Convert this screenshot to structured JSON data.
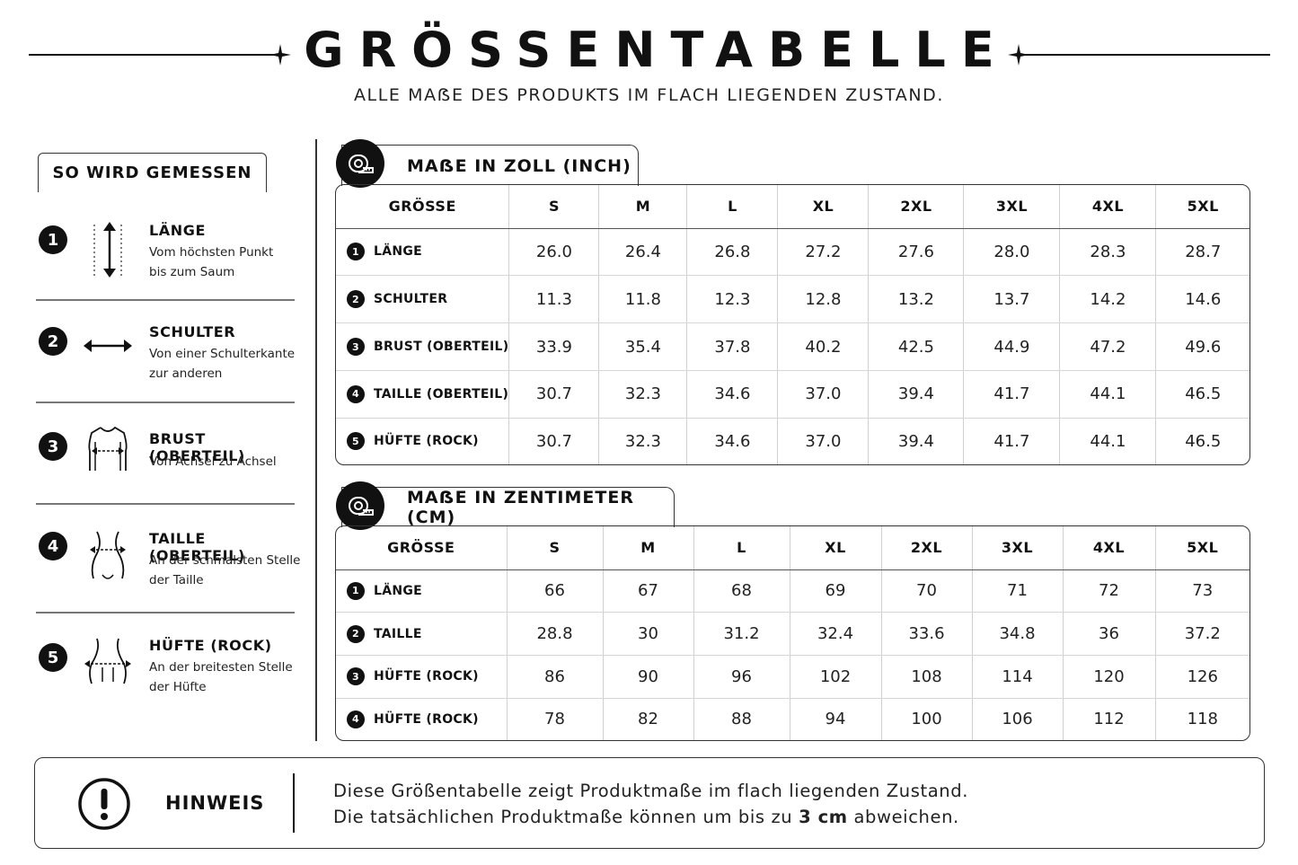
{
  "header": {
    "title": "GRÖSSENTABELLE",
    "subtitle": "ALLE MAẞE DES PRODUKTS IM FLACH LIEGENDEN ZUSTAND."
  },
  "guide": {
    "heading": "SO WIRD GEMESSEN",
    "steps": [
      {
        "num": "1",
        "title": "LÄNGE",
        "desc_1": "Vom höchsten Punkt",
        "desc_2": "bis zum Saum",
        "icon": "length-arrow-icon"
      },
      {
        "num": "2",
        "title": "SCHULTER",
        "desc_1": "Von einer Schulterkante",
        "desc_2": "zur anderen",
        "icon": "horizontal-arrow-icon"
      },
      {
        "num": "3",
        "title": "BRUST (OBERTEIL)",
        "desc_1": "Von Achsel zu Achsel",
        "desc_2": "",
        "icon": "bust-icon"
      },
      {
        "num": "4",
        "title": "TAILLE (OBERTEIL)",
        "desc_1": "An der schmalsten Stelle",
        "desc_2": "der Taille",
        "icon": "waist-icon"
      },
      {
        "num": "5",
        "title": "HÜFTE (ROCK)",
        "desc_1": "An der breitesten Stelle",
        "desc_2": "der Hüfte",
        "icon": "hip-icon"
      }
    ]
  },
  "inch_table": {
    "title": "MAẞE IN ZOLL (INCH)",
    "size_header": "GRÖSSE",
    "sizes": [
      "S",
      "M",
      "L",
      "XL",
      "2XL",
      "3XL",
      "4XL",
      "5XL"
    ],
    "rows": [
      {
        "num": "1",
        "label": "LÄNGE",
        "values": [
          "26.0",
          "26.4",
          "26.8",
          "27.2",
          "27.6",
          "28.0",
          "28.3",
          "28.7"
        ]
      },
      {
        "num": "2",
        "label": "SCHULTER",
        "values": [
          "11.3",
          "11.8",
          "12.3",
          "12.8",
          "13.2",
          "13.7",
          "14.2",
          "14.6"
        ]
      },
      {
        "num": "3",
        "label": "BRUST (OBERTEIL)",
        "values": [
          "33.9",
          "35.4",
          "37.8",
          "40.2",
          "42.5",
          "44.9",
          "47.2",
          "49.6"
        ]
      },
      {
        "num": "4",
        "label": "TAILLE (OBERTEIL)",
        "values": [
          "30.7",
          "32.3",
          "34.6",
          "37.0",
          "39.4",
          "41.7",
          "44.1",
          "46.5"
        ]
      },
      {
        "num": "5",
        "label": "HÜFTE (ROCK)",
        "values": [
          "30.7",
          "32.3",
          "34.6",
          "37.0",
          "39.4",
          "41.7",
          "44.1",
          "46.5"
        ]
      }
    ]
  },
  "cm_table": {
    "title": "MAẞE IN ZENTIMETER (CM)",
    "size_header": "GRÖSSE",
    "sizes": [
      "S",
      "M",
      "L",
      "XL",
      "2XL",
      "3XL",
      "4XL",
      "5XL"
    ],
    "rows": [
      {
        "num": "1",
        "label": "LÄNGE",
        "values": [
          "66",
          "67",
          "68",
          "69",
          "70",
          "71",
          "72",
          "73"
        ]
      },
      {
        "num": "2",
        "label": "TAILLE",
        "values": [
          "28.8",
          "30",
          "31.2",
          "32.4",
          "33.6",
          "34.8",
          "36",
          "37.2"
        ]
      },
      {
        "num": "3",
        "label": "HÜFTE (ROCK)",
        "values": [
          "86",
          "90",
          "96",
          "102",
          "108",
          "114",
          "120",
          "126"
        ]
      },
      {
        "num": "4",
        "label": "HÜFTE (ROCK)",
        "values": [
          "78",
          "82",
          "88",
          "94",
          "100",
          "106",
          "112",
          "118"
        ]
      }
    ]
  },
  "note": {
    "label": "HINWEIS",
    "line_1": "Diese Größentabelle zeigt Produktmaße im flach liegenden Zustand.",
    "line_2_pre": "Die tatsächlichen Produktmaße können um bis zu ",
    "line_2_bold": "3 cm",
    "line_2_post": " abweichen."
  },
  "colors": {
    "ink": "#111111",
    "background": "#ffffff"
  }
}
